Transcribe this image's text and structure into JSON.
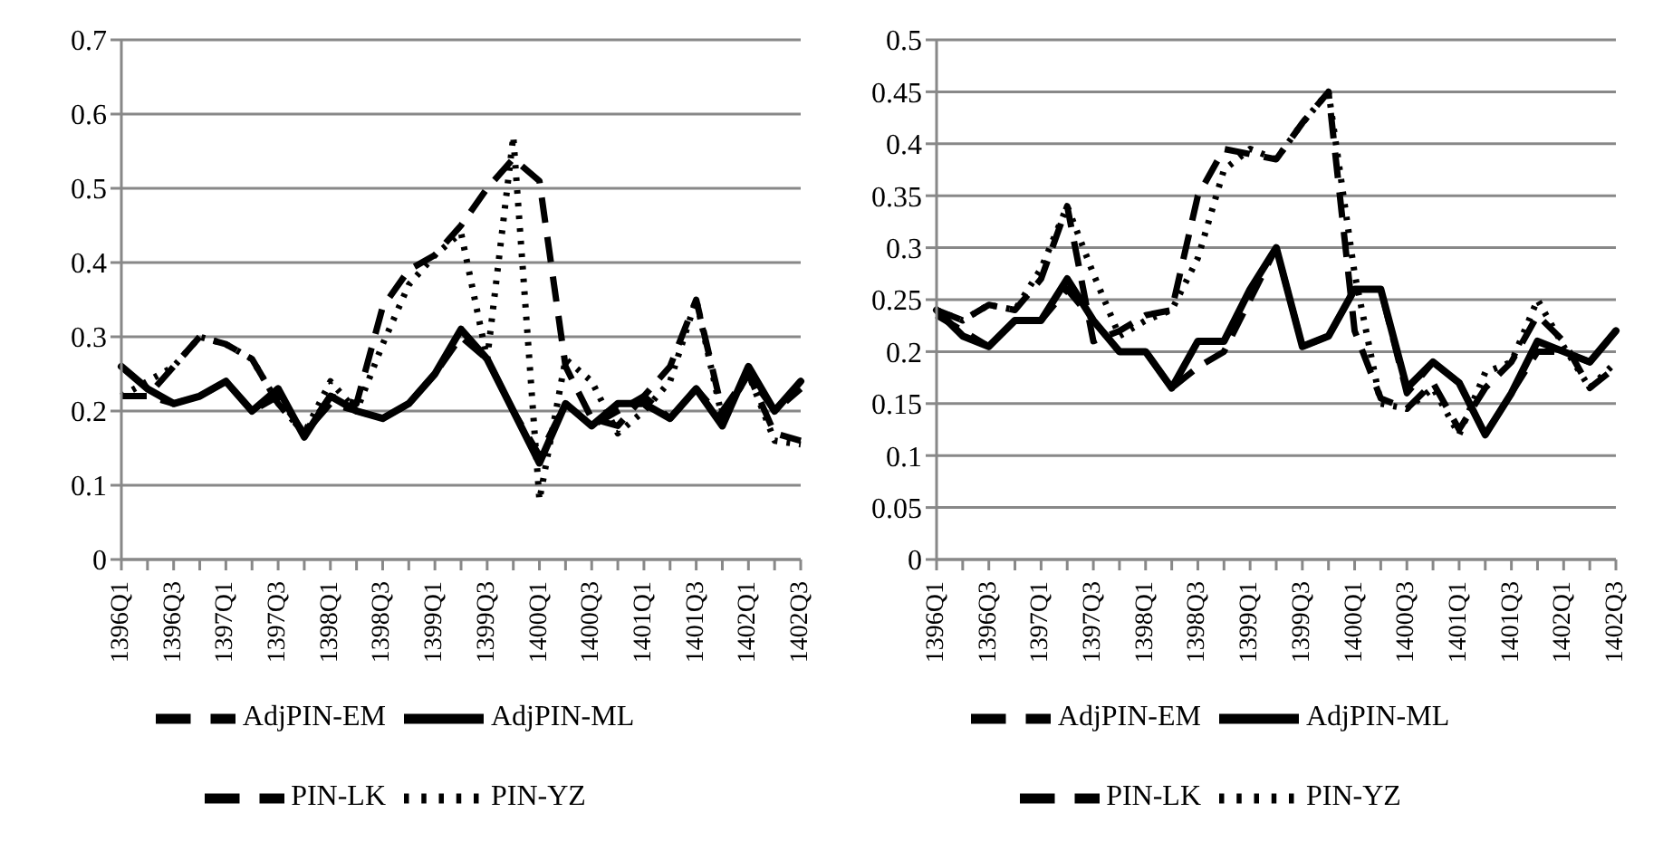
{
  "chart_data": [
    {
      "type": "line",
      "categories": [
        "1396Q1",
        null,
        "1396Q3",
        null,
        "1397Q1",
        null,
        "1397Q3",
        null,
        "1398Q1",
        null,
        "1398Q3",
        null,
        "1399Q1",
        null,
        "1399Q3",
        null,
        "1400Q1",
        null,
        "1400Q3",
        null,
        "1401Q1",
        null,
        "1401Q3",
        null,
        "1402Q1",
        null,
        "1402Q3"
      ],
      "ylim": [
        0,
        0.7
      ],
      "yticks": [
        0,
        0.1,
        0.2,
        0.3,
        0.4,
        0.5,
        0.6,
        0.7
      ],
      "grid": "y",
      "legend": "bottom",
      "marker": "none",
      "series": [
        {
          "name": "AdjPIN-EM",
          "color": "#000000",
          "line_style": "dashed",
          "values": [
            0.22,
            0.22,
            0.21,
            0.22,
            0.24,
            0.2,
            0.22,
            0.17,
            0.21,
            0.2,
            0.19,
            0.21,
            0.25,
            0.3,
            0.27,
            0.2,
            0.14,
            0.21,
            0.18,
            0.2,
            0.22,
            0.19,
            0.23,
            0.19,
            0.25,
            0.2,
            0.23
          ]
        },
        {
          "name": "AdjPIN-ML",
          "color": "#000000",
          "line_style": "solid",
          "values": [
            0.26,
            0.23,
            0.21,
            0.22,
            0.24,
            0.2,
            0.23,
            0.165,
            0.22,
            0.2,
            0.19,
            0.21,
            0.25,
            0.31,
            0.27,
            0.2,
            0.13,
            0.21,
            0.18,
            0.21,
            0.21,
            0.19,
            0.23,
            0.18,
            0.26,
            0.2,
            0.24
          ]
        },
        {
          "name": "PIN-LK",
          "color": "#000000",
          "line_style": "dashed",
          "values": [
            0.22,
            0.22,
            0.26,
            0.3,
            0.29,
            0.27,
            0.21,
            0.17,
            0.22,
            0.21,
            0.34,
            0.39,
            0.41,
            0.45,
            0.5,
            0.54,
            0.51,
            0.26,
            0.19,
            0.18,
            0.22,
            0.26,
            0.35,
            0.2,
            0.25,
            0.17,
            0.16
          ]
        },
        {
          "name": "PIN-YZ",
          "color": "#000000",
          "line_style": "dotted",
          "values": [
            0.22,
            0.24,
            0.26,
            0.3,
            0.29,
            0.27,
            0.21,
            0.17,
            0.24,
            0.2,
            0.29,
            0.37,
            0.41,
            0.44,
            0.27,
            0.57,
            0.08,
            0.27,
            0.24,
            0.17,
            0.2,
            0.24,
            0.35,
            0.19,
            0.25,
            0.16,
            0.155
          ]
        }
      ]
    },
    {
      "type": "line",
      "categories": [
        "1396Q1",
        null,
        "1396Q3",
        null,
        "1397Q1",
        null,
        "1397Q3",
        null,
        "1398Q1",
        null,
        "1398Q3",
        null,
        "1399Q1",
        null,
        "1399Q3",
        null,
        "1400Q1",
        null,
        "1400Q3",
        null,
        "1401Q1",
        null,
        "1401Q3",
        null,
        "1402Q1",
        null,
        "1402Q3"
      ],
      "ylim": [
        0,
        0.5
      ],
      "yticks": [
        0,
        0.05,
        0.1,
        0.15,
        0.2,
        0.25,
        0.3,
        0.35,
        0.4,
        0.45,
        0.5
      ],
      "grid": "y",
      "legend": "bottom",
      "marker": "none",
      "series": [
        {
          "name": "AdjPIN-EM",
          "color": "#000000",
          "line_style": "dashed",
          "values": [
            0.235,
            0.22,
            0.205,
            0.23,
            0.23,
            0.26,
            0.23,
            0.2,
            0.2,
            0.165,
            0.185,
            0.2,
            0.25,
            0.3,
            0.205,
            0.215,
            0.26,
            0.26,
            0.16,
            0.19,
            0.17,
            0.12,
            0.16,
            0.2,
            0.2,
            0.19,
            0.22
          ]
        },
        {
          "name": "AdjPIN-ML",
          "color": "#000000",
          "line_style": "solid",
          "values": [
            0.24,
            0.215,
            0.205,
            0.23,
            0.23,
            0.27,
            0.23,
            0.2,
            0.2,
            0.165,
            0.21,
            0.21,
            0.26,
            0.3,
            0.205,
            0.215,
            0.26,
            0.26,
            0.165,
            0.19,
            0.17,
            0.12,
            0.16,
            0.21,
            0.2,
            0.19,
            0.22
          ]
        },
        {
          "name": "PIN-LK",
          "color": "#000000",
          "line_style": "dashed",
          "values": [
            0.24,
            0.23,
            0.245,
            0.24,
            0.27,
            0.34,
            0.21,
            0.22,
            0.235,
            0.24,
            0.35,
            0.395,
            0.39,
            0.385,
            0.42,
            0.45,
            0.22,
            0.155,
            0.145,
            0.17,
            0.125,
            0.165,
            0.19,
            0.235,
            0.21,
            0.165,
            0.185
          ]
        },
        {
          "name": "PIN-YZ",
          "color": "#000000",
          "line_style": "dotted",
          "values": [
            0.24,
            0.23,
            0.245,
            0.24,
            0.28,
            0.34,
            0.275,
            0.215,
            0.23,
            0.24,
            0.29,
            0.375,
            0.395,
            0.385,
            0.42,
            0.45,
            0.275,
            0.15,
            0.145,
            0.165,
            0.12,
            0.18,
            0.19,
            0.25,
            0.205,
            0.165,
            0.19
          ]
        }
      ]
    }
  ]
}
